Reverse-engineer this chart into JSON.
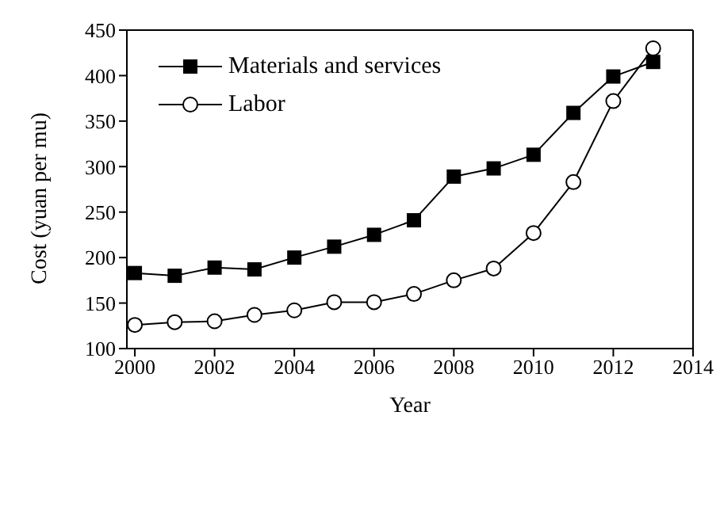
{
  "chart_data": {
    "type": "line",
    "xlabel": "Year",
    "ylabel": "Cost (yuan per mu)",
    "x": [
      2000,
      2001,
      2002,
      2003,
      2004,
      2005,
      2006,
      2007,
      2008,
      2009,
      2010,
      2011,
      2012,
      2013
    ],
    "series": [
      {
        "name": "Materials and services",
        "color": "#000000",
        "marker": "square",
        "values": [
          183,
          180,
          189,
          187,
          200,
          212,
          225,
          241,
          289,
          298,
          313,
          359,
          399,
          415
        ]
      },
      {
        "name": "Labor",
        "color": "#000000",
        "marker": "circle",
        "values": [
          126,
          129,
          130,
          137,
          142,
          151,
          151,
          160,
          175,
          188,
          227,
          283,
          372,
          430
        ]
      }
    ],
    "xlim": [
      1999.8,
      2014
    ],
    "xticks": [
      2000,
      2002,
      2004,
      2006,
      2008,
      2010,
      2012,
      2014
    ],
    "ylim": [
      100,
      450
    ],
    "yticks": [
      100,
      150,
      200,
      250,
      300,
      350,
      400,
      450
    ],
    "grid": false,
    "legend": "top left",
    "line_style": "solid"
  }
}
